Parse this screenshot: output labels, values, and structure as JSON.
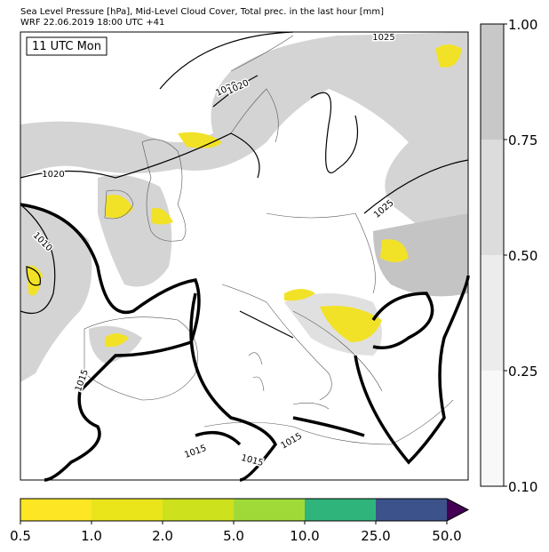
{
  "header": {
    "title_line1": "Sea Level Pressure [hPa], Mid-Level Cloud Cover, Total prec. in the last hour [mm]",
    "title_line2": "WRF 22.06.2019 18:00 UTC +41"
  },
  "map": {
    "time_label": "11 UTC Mon",
    "contour_labels": [
      "1020",
      "1025",
      "1020",
      "1025",
      "1010",
      "1020",
      "1015",
      "1015",
      "1015",
      "1015"
    ]
  },
  "cloud_colorbar": {
    "ticks": [
      "0.10",
      "0.25",
      "0.50",
      "0.75",
      "1.00"
    ],
    "colors": [
      "#f8f8f8",
      "#ececec",
      "#dcdcdc",
      "#c8c8c8"
    ]
  },
  "precip_colorbar": {
    "ticks": [
      "0.5",
      "1.0",
      "2.0",
      "5.0",
      "10.0",
      "25.0",
      "50.0"
    ],
    "colors": [
      "#fde725",
      "#e9e51a",
      "#cde11d",
      "#a0da39",
      "#2fb47c",
      "#3b528b",
      "#440154"
    ]
  }
}
